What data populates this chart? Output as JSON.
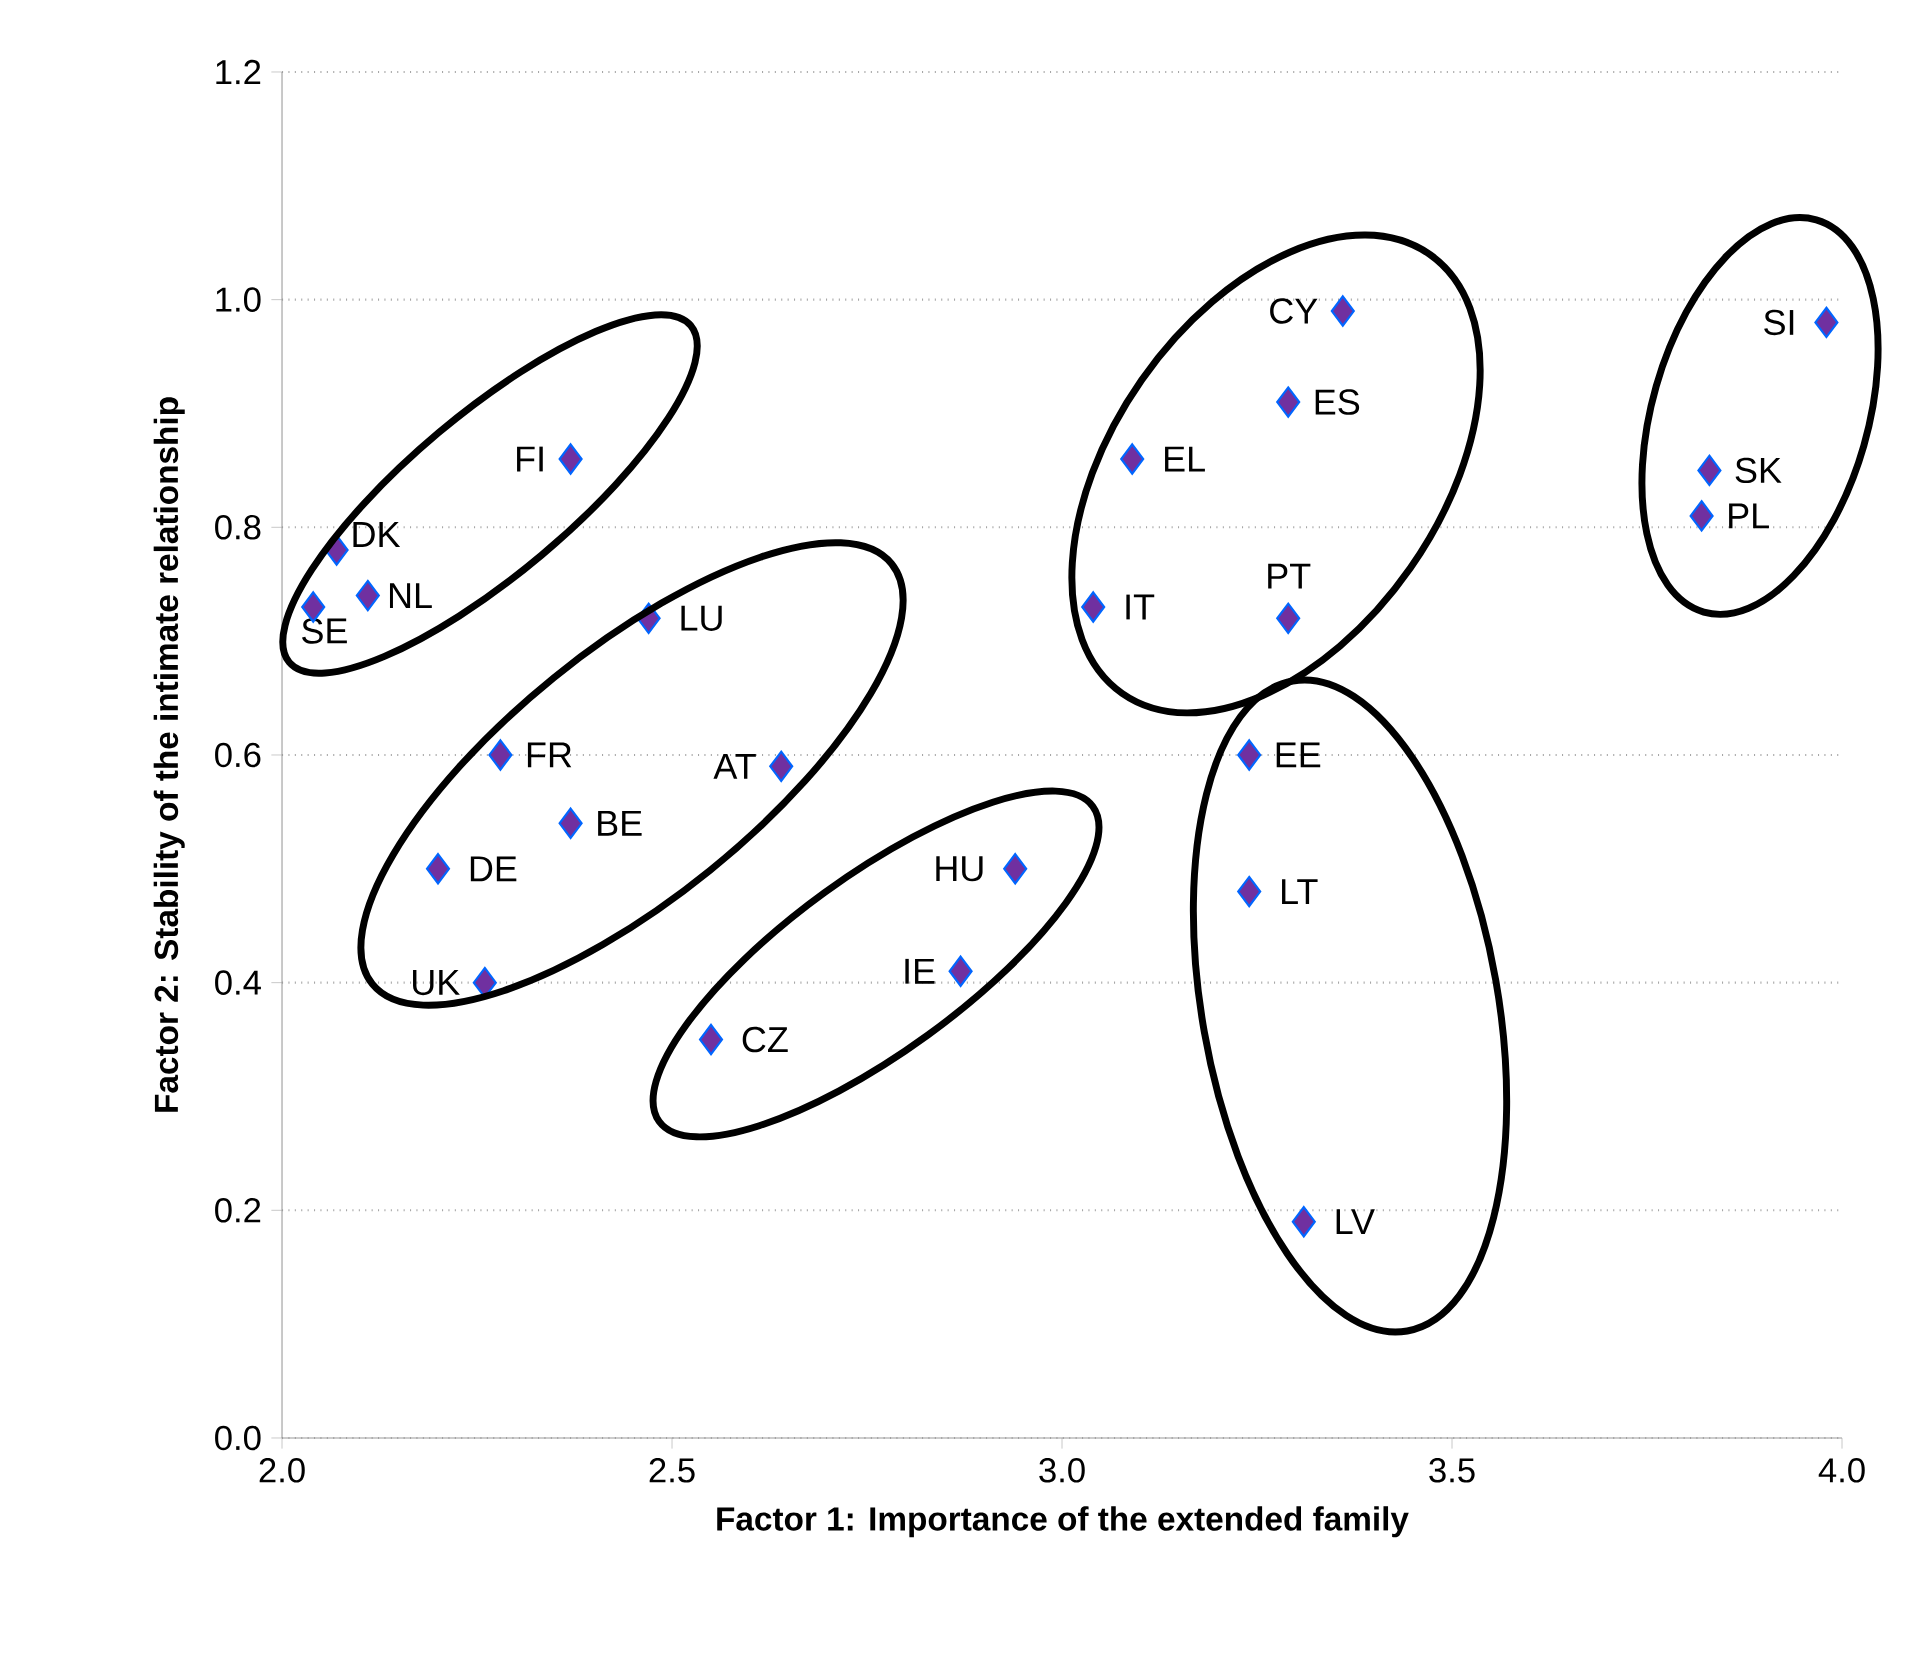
{
  "chart_data": {
    "type": "scatter",
    "xlabel": "Factor 1: Importance of the extended family",
    "ylabel": "Factor 2: Stability of the intimate relationship",
    "x": [
      2.04,
      2.07,
      2.11,
      2.37,
      2.47,
      2.28,
      2.64,
      2.37,
      2.2,
      2.26,
      2.94,
      2.87,
      2.55,
      3.36,
      3.29,
      3.09,
      3.04,
      3.29,
      3.24,
      3.24,
      3.31,
      3.98,
      3.83,
      3.82
    ],
    "values": [
      0.73,
      0.78,
      0.74,
      0.86,
      0.72,
      0.6,
      0.59,
      0.54,
      0.5,
      0.4,
      0.5,
      0.41,
      0.35,
      0.99,
      0.91,
      0.86,
      0.73,
      0.72,
      0.6,
      0.48,
      0.19,
      0.98,
      0.85,
      0.81
    ],
    "color": "#7030a0",
    "marker": "diamond",
    "grid": "y",
    "xlim": [
      2.0,
      4.0
    ],
    "ylim": [
      0.0,
      1.2
    ],
    "xticks": [
      {
        "value": 2.0,
        "label": "2.0"
      },
      2.5,
      {
        "value": 3.0,
        "label": "3.0"
      },
      3.5,
      {
        "value": 4.0,
        "label": "4.0"
      }
    ],
    "yticks": [
      {
        "value": 0.0,
        "label": "0.0"
      },
      0.2,
      0.4,
      0.6,
      0.8,
      {
        "value": 1.0,
        "label": "1.0"
      },
      1.2
    ],
    "annotations": [
      {
        "text": "SE",
        "x": 2.04,
        "y": 0.73
      },
      {
        "text": "DK",
        "x": 2.07,
        "y": 0.78
      },
      {
        "text": "NL",
        "x": 2.11,
        "y": 0.74
      },
      {
        "text": "FI",
        "x": 2.37,
        "y": 0.86
      },
      {
        "text": "LU",
        "x": 2.47,
        "y": 0.72
      },
      {
        "text": "FR",
        "x": 2.28,
        "y": 0.6
      },
      {
        "text": "AT",
        "x": 2.64,
        "y": 0.59
      },
      {
        "text": "BE",
        "x": 2.37,
        "y": 0.54
      },
      {
        "text": "DE",
        "x": 2.2,
        "y": 0.5
      },
      {
        "text": "UK",
        "x": 2.26,
        "y": 0.4
      },
      {
        "text": "HU",
        "x": 2.94,
        "y": 0.5
      },
      {
        "text": "IE",
        "x": 2.87,
        "y": 0.41
      },
      {
        "text": "CZ",
        "x": 2.55,
        "y": 0.35
      },
      {
        "text": "CY",
        "x": 3.36,
        "y": 0.99
      },
      {
        "text": "ES",
        "x": 3.29,
        "y": 0.91
      },
      {
        "text": "EL",
        "x": 3.09,
        "y": 0.86
      },
      {
        "text": "IT",
        "x": 3.04,
        "y": 0.73
      },
      {
        "text": "PT",
        "x": 3.29,
        "y": 0.72
      },
      {
        "text": "EE",
        "x": 3.24,
        "y": 0.6
      },
      {
        "text": "LT",
        "x": 3.24,
        "y": 0.48
      },
      {
        "text": "LV",
        "x": 3.31,
        "y": 0.19
      },
      {
        "text": "SI",
        "x": 3.98,
        "y": 0.98
      },
      {
        "text": "SK",
        "x": 3.83,
        "y": 0.85
      },
      {
        "text": "PL",
        "x": 3.82,
        "y": 0.81
      }
    ]
  }
}
